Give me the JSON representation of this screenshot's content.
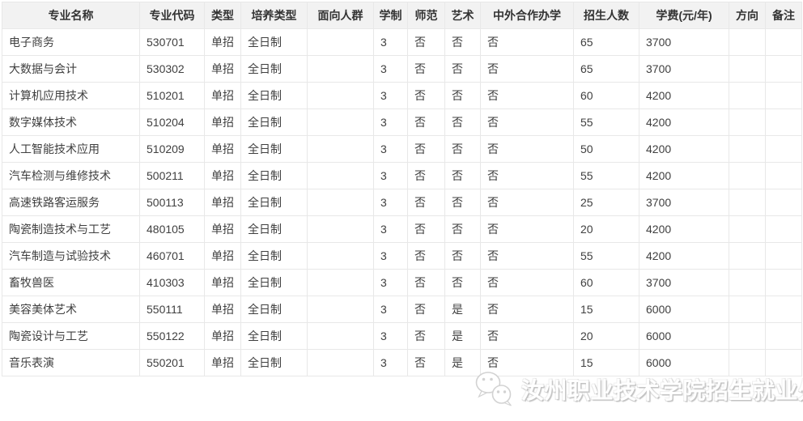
{
  "table": {
    "columns": [
      {
        "key": "name",
        "label": "专业名称"
      },
      {
        "key": "code",
        "label": "专业代码"
      },
      {
        "key": "type",
        "label": "类型"
      },
      {
        "key": "training",
        "label": "培养类型"
      },
      {
        "key": "audience",
        "label": "面向人群"
      },
      {
        "key": "duration",
        "label": "学制"
      },
      {
        "key": "normal",
        "label": "师范"
      },
      {
        "key": "art",
        "label": "艺术"
      },
      {
        "key": "sino_foreign",
        "label": "中外合作办学"
      },
      {
        "key": "enrollment",
        "label": "招生人数"
      },
      {
        "key": "tuition",
        "label": "学费(元/年)"
      },
      {
        "key": "direction",
        "label": "方向"
      },
      {
        "key": "remark",
        "label": "备注"
      }
    ],
    "rows": [
      {
        "name": "电子商务",
        "code": "530701",
        "type": "单招",
        "training": "全日制",
        "audience": "",
        "duration": "3",
        "normal": "否",
        "art": "否",
        "sino_foreign": "否",
        "enrollment": "65",
        "tuition": "3700",
        "direction": "",
        "remark": ""
      },
      {
        "name": "大数据与会计",
        "code": "530302",
        "type": "单招",
        "training": "全日制",
        "audience": "",
        "duration": "3",
        "normal": "否",
        "art": "否",
        "sino_foreign": "否",
        "enrollment": "65",
        "tuition": "3700",
        "direction": "",
        "remark": ""
      },
      {
        "name": "计算机应用技术",
        "code": "510201",
        "type": "单招",
        "training": "全日制",
        "audience": "",
        "duration": "3",
        "normal": "否",
        "art": "否",
        "sino_foreign": "否",
        "enrollment": "60",
        "tuition": "4200",
        "direction": "",
        "remark": ""
      },
      {
        "name": "数字媒体技术",
        "code": "510204",
        "type": "单招",
        "training": "全日制",
        "audience": "",
        "duration": "3",
        "normal": "否",
        "art": "否",
        "sino_foreign": "否",
        "enrollment": "55",
        "tuition": "4200",
        "direction": "",
        "remark": ""
      },
      {
        "name": "人工智能技术应用",
        "code": "510209",
        "type": "单招",
        "training": "全日制",
        "audience": "",
        "duration": "3",
        "normal": "否",
        "art": "否",
        "sino_foreign": "否",
        "enrollment": "50",
        "tuition": "4200",
        "direction": "",
        "remark": ""
      },
      {
        "name": "汽车检测与维修技术",
        "code": "500211",
        "type": "单招",
        "training": "全日制",
        "audience": "",
        "duration": "3",
        "normal": "否",
        "art": "否",
        "sino_foreign": "否",
        "enrollment": "55",
        "tuition": "4200",
        "direction": "",
        "remark": ""
      },
      {
        "name": "高速铁路客运服务",
        "code": "500113",
        "type": "单招",
        "training": "全日制",
        "audience": "",
        "duration": "3",
        "normal": "否",
        "art": "否",
        "sino_foreign": "否",
        "enrollment": "25",
        "tuition": "3700",
        "direction": "",
        "remark": ""
      },
      {
        "name": "陶瓷制造技术与工艺",
        "code": "480105",
        "type": "单招",
        "training": "全日制",
        "audience": "",
        "duration": "3",
        "normal": "否",
        "art": "否",
        "sino_foreign": "否",
        "enrollment": "20",
        "tuition": "4200",
        "direction": "",
        "remark": ""
      },
      {
        "name": "汽车制造与试验技术",
        "code": "460701",
        "type": "单招",
        "training": "全日制",
        "audience": "",
        "duration": "3",
        "normal": "否",
        "art": "否",
        "sino_foreign": "否",
        "enrollment": "55",
        "tuition": "4200",
        "direction": "",
        "remark": ""
      },
      {
        "name": "畜牧兽医",
        "code": "410303",
        "type": "单招",
        "training": "全日制",
        "audience": "",
        "duration": "3",
        "normal": "否",
        "art": "否",
        "sino_foreign": "否",
        "enrollment": "60",
        "tuition": "3700",
        "direction": "",
        "remark": ""
      },
      {
        "name": "美容美体艺术",
        "code": "550111",
        "type": "单招",
        "training": "全日制",
        "audience": "",
        "duration": "3",
        "normal": "否",
        "art": "是",
        "sino_foreign": "否",
        "enrollment": "15",
        "tuition": "6000",
        "direction": "",
        "remark": ""
      },
      {
        "name": "陶瓷设计与工艺",
        "code": "550122",
        "type": "单招",
        "training": "全日制",
        "audience": "",
        "duration": "3",
        "normal": "否",
        "art": "是",
        "sino_foreign": "否",
        "enrollment": "20",
        "tuition": "6000",
        "direction": "",
        "remark": ""
      },
      {
        "name": "音乐表演",
        "code": "550201",
        "type": "单招",
        "training": "全日制",
        "audience": "",
        "duration": "3",
        "normal": "否",
        "art": "是",
        "sino_foreign": "否",
        "enrollment": "15",
        "tuition": "6000",
        "direction": "",
        "remark": ""
      }
    ]
  },
  "watermark": {
    "icon": "wechat-icon",
    "text": "汝州职业技术学院招生就业处"
  },
  "colors": {
    "header_bg": "#f2f2f2",
    "header_text": "#333333",
    "cell_text": "#404040",
    "border": "#e8e8e8",
    "watermark_text": "#ffffff",
    "watermark_shadow": "#c2c2c2",
    "icon_outline": "#d2d2d2"
  }
}
